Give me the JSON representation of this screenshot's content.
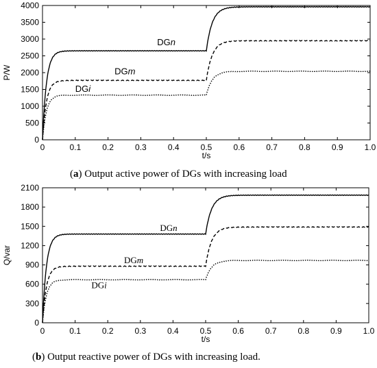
{
  "chart_data": [
    {
      "type": "line",
      "caption_letter": "a",
      "caption": "Output active power of DGs with increasing load",
      "xlabel": "t/s",
      "ylabel": "P/W",
      "xlim": [
        0,
        1.0
      ],
      "ylim": [
        0,
        4000
      ],
      "xticks": [
        "0",
        "0.1",
        "0.2",
        "0.3",
        "0.4",
        "0.5",
        "0.6",
        "0.7",
        "0.8",
        "0.9",
        "1.0"
      ],
      "yticks": [
        "0",
        "500",
        "1000",
        "1500",
        "2000",
        "2500",
        "3000",
        "3500",
        "4000"
      ],
      "grid": false,
      "series": [
        {
          "name": "DGn",
          "base": "DG",
          "sub": "n",
          "style": "solid",
          "level1": 2650,
          "level2": 3960,
          "label_x": 0.35,
          "label_y": 2820
        },
        {
          "name": "DGm",
          "base": "DG",
          "sub": "m",
          "style": "dashed",
          "level1": 1770,
          "level2": 2950,
          "label_x": 0.22,
          "label_y": 1950
        },
        {
          "name": "DGi",
          "base": "DG",
          "sub": "i",
          "style": "dotted",
          "level1": 1330,
          "level2": 2040,
          "label_x": 0.1,
          "label_y": 1430
        }
      ],
      "step_time": 0.5
    },
    {
      "type": "line",
      "caption_letter": "b",
      "caption": "Output reactive power of DGs with increasing load.",
      "xlabel": "t/s",
      "ylabel": "Q/var",
      "xlim": [
        0,
        1.0
      ],
      "ylim": [
        0,
        2100
      ],
      "xticks": [
        "0",
        "0.1",
        "0.2",
        "0.3",
        "0.4",
        "0.5",
        "0.6",
        "0.7",
        "0.8",
        "0.9",
        "1.0"
      ],
      "yticks": [
        "0",
        "300",
        "600",
        "900",
        "1200",
        "1500",
        "1800",
        "2100"
      ],
      "grid": false,
      "series": [
        {
          "name": "DGn",
          "base": "DG",
          "sub": "n",
          "style": "solid",
          "level1": 1380,
          "level2": 1985,
          "label_x": 0.36,
          "label_y": 1430
        },
        {
          "name": "DGm",
          "base": "DG",
          "sub": "m",
          "style": "dashed",
          "level1": 880,
          "level2": 1490,
          "label_x": 0.25,
          "label_y": 930
        },
        {
          "name": "DGi",
          "base": "DG",
          "sub": "i",
          "style": "dotted",
          "level1": 670,
          "level2": 970,
          "label_x": 0.15,
          "label_y": 540
        }
      ],
      "step_time": 0.5
    }
  ]
}
